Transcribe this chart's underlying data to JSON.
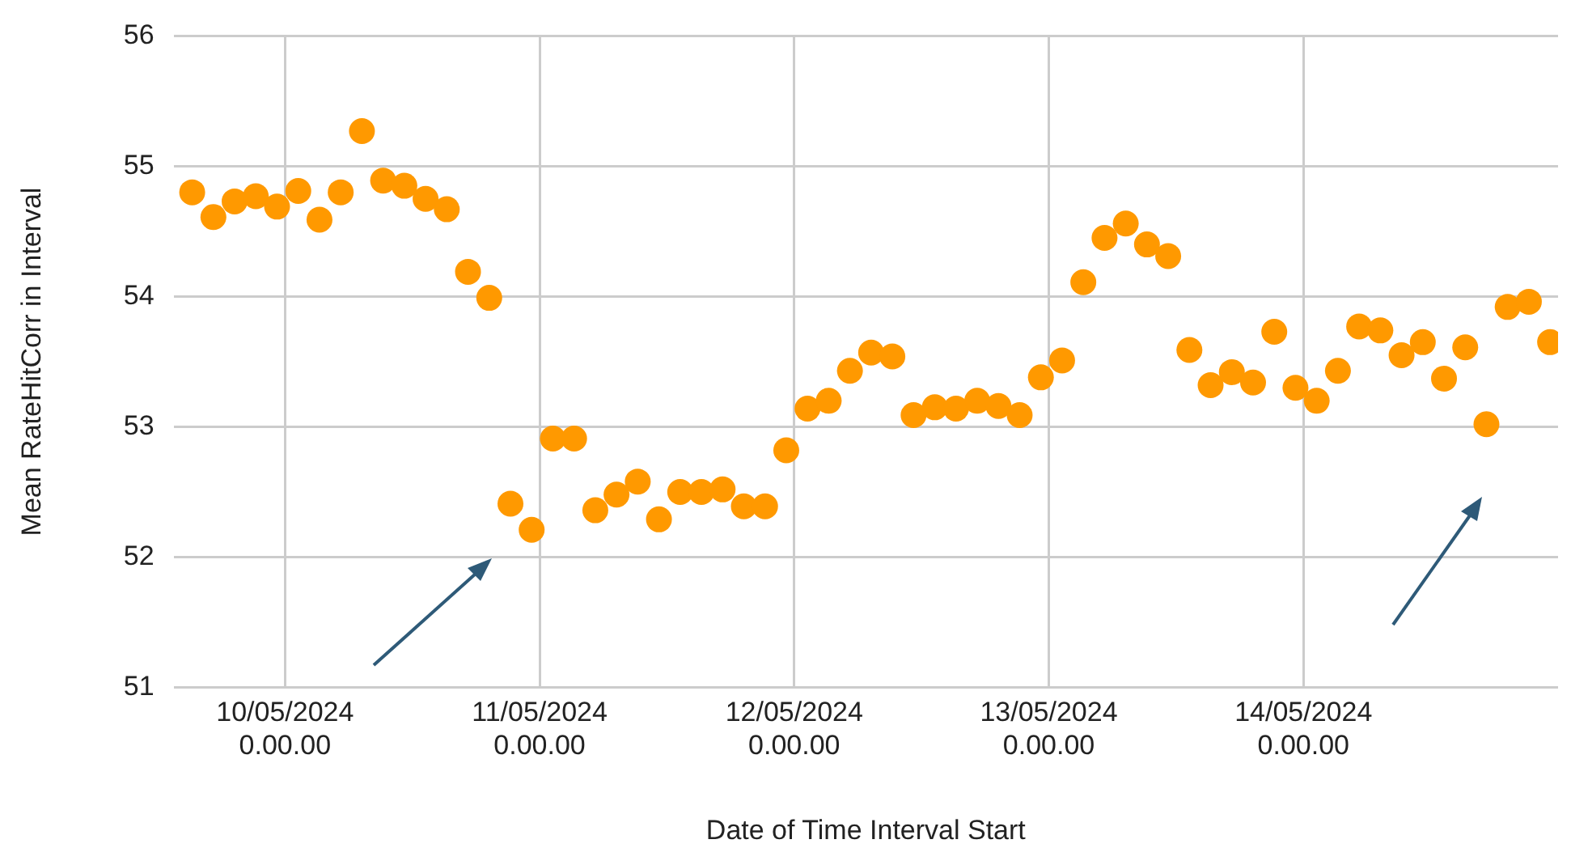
{
  "chart_data": {
    "type": "scatter",
    "xlabel": "Date of Time Interval Start",
    "ylabel": "Mean RateHitCorr in Interval",
    "x": [
      "2024-05-09T15:15",
      "2024-05-09T17:15",
      "2024-05-09T19:15",
      "2024-05-09T21:15",
      "2024-05-09T23:15",
      "2024-05-10T01:15",
      "2024-05-10T03:15",
      "2024-05-10T05:15",
      "2024-05-10T07:15",
      "2024-05-10T09:15",
      "2024-05-10T11:15",
      "2024-05-10T13:15",
      "2024-05-10T15:15",
      "2024-05-10T17:15",
      "2024-05-10T19:15",
      "2024-05-10T21:15",
      "2024-05-10T23:15",
      "2024-05-11T01:15",
      "2024-05-11T03:15",
      "2024-05-11T05:15",
      "2024-05-11T07:15",
      "2024-05-11T09:15",
      "2024-05-11T11:15",
      "2024-05-11T13:15",
      "2024-05-11T15:15",
      "2024-05-11T17:15",
      "2024-05-11T19:15",
      "2024-05-11T21:15",
      "2024-05-11T23:15",
      "2024-05-12T01:15",
      "2024-05-12T03:15",
      "2024-05-12T05:15",
      "2024-05-12T07:15",
      "2024-05-12T09:15",
      "2024-05-12T11:15",
      "2024-05-12T13:15",
      "2024-05-12T15:15",
      "2024-05-12T17:15",
      "2024-05-12T19:15",
      "2024-05-12T21:15",
      "2024-05-12T23:15",
      "2024-05-13T01:15",
      "2024-05-13T03:15",
      "2024-05-13T05:15",
      "2024-05-13T07:15",
      "2024-05-13T09:15",
      "2024-05-13T11:15",
      "2024-05-13T13:15",
      "2024-05-13T15:15",
      "2024-05-13T17:15",
      "2024-05-13T19:15",
      "2024-05-13T21:15",
      "2024-05-13T23:15",
      "2024-05-14T01:15",
      "2024-05-14T03:15",
      "2024-05-14T05:15",
      "2024-05-14T07:15",
      "2024-05-14T09:15",
      "2024-05-14T11:15",
      "2024-05-14T13:15",
      "2024-05-14T15:15",
      "2024-05-14T17:15",
      "2024-05-14T19:15",
      "2024-05-14T21:15",
      "2024-05-14T23:15"
    ],
    "series": [
      {
        "color": "#ff9900",
        "values": [
          54.8,
          54.61,
          54.73,
          54.77,
          54.69,
          54.81,
          54.59,
          54.8,
          55.27,
          54.89,
          54.85,
          54.75,
          54.67,
          54.19,
          53.99,
          52.41,
          52.21,
          52.91,
          52.91,
          52.36,
          52.48,
          52.58,
          52.29,
          52.5,
          52.5,
          52.52,
          52.39,
          52.39,
          52.82,
          53.14,
          53.2,
          53.43,
          53.57,
          53.54,
          53.09,
          53.15,
          53.14,
          53.2,
          53.16,
          53.09,
          53.38,
          53.51,
          54.11,
          54.45,
          54.56,
          54.4,
          54.31,
          53.59,
          53.32,
          53.42,
          53.34,
          53.73,
          53.3,
          53.2,
          53.43,
          53.77,
          53.74,
          53.55,
          53.65,
          53.37,
          53.61,
          53.02,
          53.92,
          53.96,
          53.65
        ]
      }
    ],
    "xlim": [
      "2024-05-09T13:30",
      "2024-05-15T00:00"
    ],
    "xticks": [
      {
        "value": "2024-05-10T00:00",
        "label": "10/05/2024\n0.00.00"
      },
      {
        "value": "2024-05-11T00:00",
        "label": "11/05/2024\n0.00.00"
      },
      {
        "value": "2024-05-12T00:00",
        "label": "12/05/2024\n0.00.00"
      },
      {
        "value": "2024-05-13T00:00",
        "label": "13/05/2024\n0.00.00"
      },
      {
        "value": "2024-05-14T00:00",
        "label": "14/05/2024\n0.00.00"
      }
    ],
    "ylim": [
      51,
      56
    ],
    "yticks": [
      51,
      52,
      53,
      54,
      55,
      56
    ],
    "grid": true,
    "legend": false,
    "marker": "circle"
  }
}
